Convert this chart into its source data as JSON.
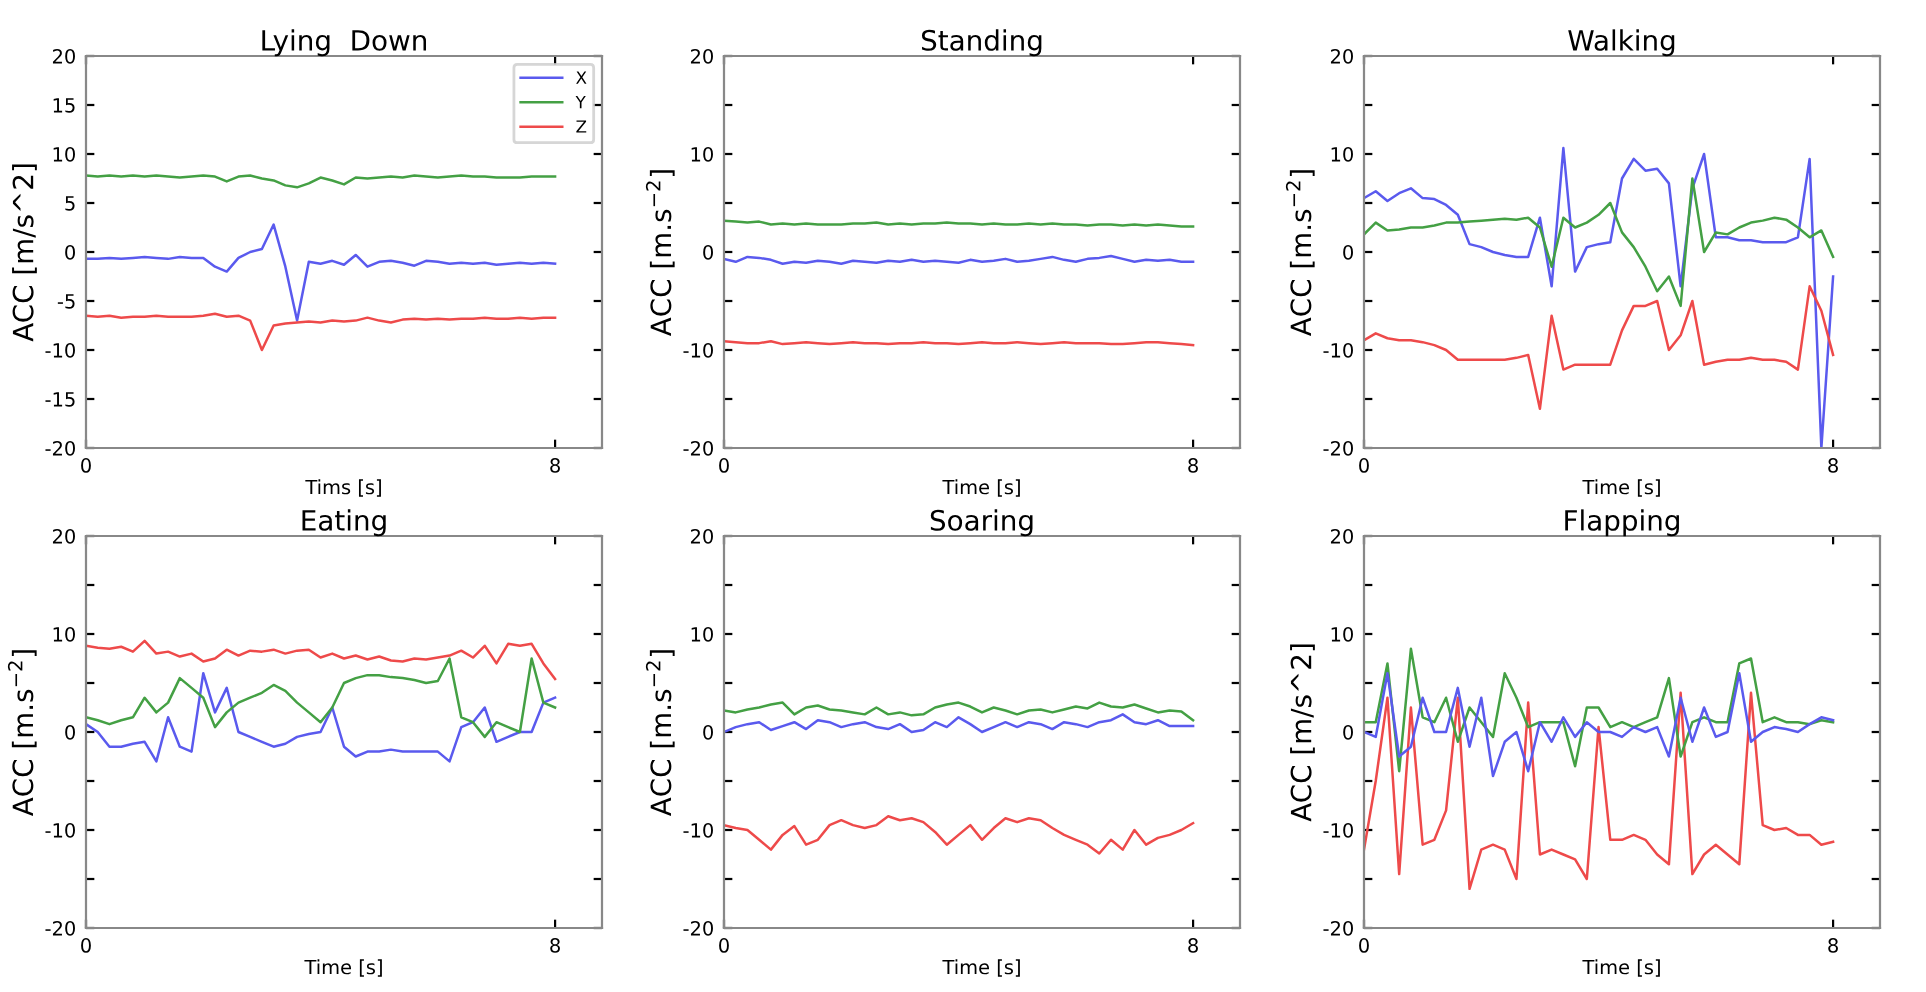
{
  "chart_data": [
    {
      "type": "line",
      "title": "Lying  Down",
      "xlabel": "Tims [s]",
      "ylabel": "ACC [m/s^2]",
      "legend": "top right",
      "x": [
        0,
        0.2,
        0.4,
        0.6,
        0.8,
        1.0,
        1.2,
        1.4,
        1.6,
        1.8,
        2.0,
        2.2,
        2.4,
        2.6,
        2.8,
        3.0,
        3.2,
        3.4,
        3.6,
        3.8,
        4.0,
        4.2,
        4.4,
        4.6,
        4.8,
        5.0,
        5.2,
        5.4,
        5.6,
        5.8,
        6.0,
        6.2,
        6.4,
        6.6,
        6.8,
        7.0,
        7.2,
        7.4,
        7.6,
        7.8,
        8.0
      ],
      "xlim": [
        0,
        8.8
      ],
      "xticks": [
        0,
        8
      ],
      "ylim": [
        -20,
        20
      ],
      "yticks": [
        -20,
        -15,
        -10,
        -5,
        0,
        5,
        10,
        15,
        20
      ],
      "series": [
        {
          "name": "X",
          "color": "#5a5aee",
          "values": [
            -0.7,
            -0.7,
            -0.6,
            -0.7,
            -0.6,
            -0.5,
            -0.6,
            -0.7,
            -0.5,
            -0.6,
            -0.6,
            -1.5,
            -2.0,
            -0.6,
            0.0,
            0.3,
            2.8,
            -1.5,
            -7.0,
            -1.0,
            -1.2,
            -0.9,
            -1.3,
            -0.3,
            -1.5,
            -1.0,
            -0.9,
            -1.1,
            -1.4,
            -0.9,
            -1.0,
            -1.2,
            -1.1,
            -1.2,
            -1.1,
            -1.3,
            -1.2,
            -1.1,
            -1.2,
            -1.1,
            -1.2
          ]
        },
        {
          "name": "Y",
          "color": "#44a044",
          "values": [
            7.8,
            7.7,
            7.8,
            7.7,
            7.8,
            7.7,
            7.8,
            7.7,
            7.6,
            7.7,
            7.8,
            7.7,
            7.2,
            7.7,
            7.8,
            7.5,
            7.3,
            6.8,
            6.6,
            7.0,
            7.6,
            7.3,
            6.9,
            7.6,
            7.5,
            7.6,
            7.7,
            7.6,
            7.8,
            7.7,
            7.6,
            7.7,
            7.8,
            7.7,
            7.7,
            7.6,
            7.6,
            7.6,
            7.7,
            7.7,
            7.7
          ]
        },
        {
          "name": "Z",
          "color": "#ee4a4a",
          "values": [
            -6.5,
            -6.6,
            -6.5,
            -6.7,
            -6.6,
            -6.6,
            -6.5,
            -6.6,
            -6.6,
            -6.6,
            -6.5,
            -6.3,
            -6.6,
            -6.5,
            -7.0,
            -10.0,
            -7.5,
            -7.3,
            -7.2,
            -7.1,
            -7.2,
            -7.0,
            -7.1,
            -7.0,
            -6.7,
            -7.0,
            -7.2,
            -6.9,
            -6.8,
            -6.9,
            -6.8,
            -6.9,
            -6.8,
            -6.8,
            -6.7,
            -6.8,
            -6.8,
            -6.7,
            -6.8,
            -6.7,
            -6.7
          ]
        }
      ]
    },
    {
      "type": "line",
      "title": "Standing",
      "xlabel": "Time [s]",
      "ylabel": "ACC [m.s$^{−2}$]",
      "x": [
        0,
        0.2,
        0.4,
        0.6,
        0.8,
        1.0,
        1.2,
        1.4,
        1.6,
        1.8,
        2.0,
        2.2,
        2.4,
        2.6,
        2.8,
        3.0,
        3.2,
        3.4,
        3.6,
        3.8,
        4.0,
        4.2,
        4.4,
        4.6,
        4.8,
        5.0,
        5.2,
        5.4,
        5.6,
        5.8,
        6.0,
        6.2,
        6.4,
        6.6,
        6.8,
        7.0,
        7.2,
        7.4,
        7.6,
        7.8,
        8.0
      ],
      "xlim": [
        0,
        8.8
      ],
      "xticks": [
        0,
        8
      ],
      "ylim": [
        -20,
        20
      ],
      "yticks": [
        -20,
        {
          "value": -15,
          "label": null
        },
        -10,
        {
          "value": -5,
          "label": null
        },
        0,
        {
          "value": 5,
          "label": null
        },
        10,
        {
          "value": 15,
          "label": null
        },
        20
      ],
      "series": [
        {
          "color": "#5a5aee",
          "values": [
            -0.7,
            -1.0,
            -0.5,
            -0.6,
            -0.8,
            -1.2,
            -1.0,
            -1.1,
            -0.9,
            -1.0,
            -1.2,
            -0.9,
            -1.0,
            -1.1,
            -0.9,
            -1.0,
            -0.8,
            -1.0,
            -0.9,
            -1.0,
            -1.1,
            -0.8,
            -1.0,
            -0.9,
            -0.7,
            -1.0,
            -0.9,
            -0.7,
            -0.5,
            -0.8,
            -1.0,
            -0.7,
            -0.6,
            -0.4,
            -0.7,
            -1.0,
            -0.8,
            -0.9,
            -0.8,
            -1.0,
            -1.0
          ]
        },
        {
          "color": "#44a044",
          "values": [
            3.2,
            3.1,
            3.0,
            3.1,
            2.8,
            2.9,
            2.8,
            2.9,
            2.8,
            2.8,
            2.8,
            2.9,
            2.9,
            3.0,
            2.8,
            2.9,
            2.8,
            2.9,
            2.9,
            3.0,
            2.9,
            2.9,
            2.8,
            2.9,
            2.8,
            2.8,
            2.9,
            2.8,
            2.9,
            2.8,
            2.8,
            2.7,
            2.8,
            2.8,
            2.7,
            2.8,
            2.7,
            2.8,
            2.7,
            2.6,
            2.6
          ]
        },
        {
          "color": "#ee4a4a",
          "values": [
            -9.1,
            -9.2,
            -9.3,
            -9.3,
            -9.1,
            -9.4,
            -9.3,
            -9.2,
            -9.3,
            -9.4,
            -9.3,
            -9.2,
            -9.3,
            -9.3,
            -9.4,
            -9.3,
            -9.3,
            -9.2,
            -9.3,
            -9.3,
            -9.4,
            -9.3,
            -9.2,
            -9.3,
            -9.3,
            -9.2,
            -9.3,
            -9.4,
            -9.3,
            -9.2,
            -9.3,
            -9.3,
            -9.3,
            -9.4,
            -9.4,
            -9.3,
            -9.2,
            -9.2,
            -9.3,
            -9.4,
            -9.5
          ]
        }
      ]
    },
    {
      "type": "line",
      "title": "Walking",
      "xlabel": "Time [s]",
      "ylabel": "ACC [m.s$^{−2}$]",
      "x": [
        0,
        0.2,
        0.4,
        0.6,
        0.8,
        1.0,
        1.2,
        1.4,
        1.6,
        1.8,
        2.0,
        2.2,
        2.4,
        2.6,
        2.8,
        3.0,
        3.2,
        3.4,
        3.6,
        3.8,
        4.0,
        4.2,
        4.4,
        4.6,
        4.8,
        5.0,
        5.2,
        5.4,
        5.6,
        5.8,
        6.0,
        6.2,
        6.4,
        6.6,
        6.8,
        7.0,
        7.2,
        7.4,
        7.6,
        7.8,
        8.0
      ],
      "xlim": [
        0,
        8.8
      ],
      "xticks": [
        0,
        8
      ],
      "ylim": [
        -20,
        20
      ],
      "yticks": [
        -20,
        {
          "value": -15,
          "label": null
        },
        -10,
        {
          "value": -5,
          "label": null
        },
        0,
        {
          "value": 5,
          "label": null
        },
        10,
        {
          "value": 15,
          "label": null
        },
        20
      ],
      "series": [
        {
          "color": "#5a5aee",
          "values": [
            5.5,
            6.2,
            5.2,
            6.0,
            6.5,
            5.5,
            5.4,
            4.8,
            3.8,
            0.8,
            0.5,
            0.0,
            -0.3,
            -0.5,
            -0.5,
            3.5,
            -3.5,
            10.6,
            -2.0,
            0.5,
            0.8,
            1.0,
            7.5,
            9.5,
            8.3,
            8.5,
            7.0,
            -3.5,
            6.5,
            10.0,
            1.5,
            1.5,
            1.2,
            1.2,
            1.0,
            1.0,
            1.0,
            1.5,
            9.5,
            -20.0,
            -2.5
          ]
        },
        {
          "color": "#44a044",
          "values": [
            1.8,
            3.0,
            2.2,
            2.3,
            2.5,
            2.5,
            2.7,
            3.0,
            3.0,
            3.1,
            3.2,
            3.3,
            3.4,
            3.3,
            3.5,
            2.5,
            -1.5,
            3.5,
            2.5,
            3.0,
            3.8,
            5.0,
            2.0,
            0.5,
            -1.5,
            -4.0,
            -2.5,
            -5.5,
            7.5,
            0.0,
            2.0,
            1.8,
            2.5,
            3.0,
            3.2,
            3.5,
            3.3,
            2.5,
            1.5,
            2.2,
            -0.5
          ]
        },
        {
          "color": "#ee4a4a",
          "values": [
            -9.0,
            -8.3,
            -8.8,
            -9.0,
            -9.0,
            -9.2,
            -9.5,
            -10.0,
            -11.0,
            -11.0,
            -11.0,
            -11.0,
            -11.0,
            -10.8,
            -10.5,
            -16.0,
            -6.5,
            -12.0,
            -11.5,
            -11.5,
            -11.5,
            -11.5,
            -8.0,
            -5.5,
            -5.5,
            -5.0,
            -10.0,
            -8.5,
            -5.0,
            -11.5,
            -11.2,
            -11.0,
            -11.0,
            -10.8,
            -11.0,
            -11.0,
            -11.2,
            -12.0,
            -3.5,
            -6.0,
            -10.5
          ]
        }
      ]
    },
    {
      "type": "line",
      "title": "Eating",
      "xlabel": "Time [s]",
      "ylabel": "ACC [m.s$^{−2}$]",
      "x": [
        0,
        0.2,
        0.4,
        0.6,
        0.8,
        1.0,
        1.2,
        1.4,
        1.6,
        1.8,
        2.0,
        2.2,
        2.4,
        2.6,
        2.8,
        3.0,
        3.2,
        3.4,
        3.6,
        3.8,
        4.0,
        4.2,
        4.4,
        4.6,
        4.8,
        5.0,
        5.2,
        5.4,
        5.6,
        5.8,
        6.0,
        6.2,
        6.4,
        6.6,
        6.8,
        7.0,
        7.2,
        7.4,
        7.6,
        7.8,
        8.0
      ],
      "xlim": [
        0,
        8.8
      ],
      "xticks": [
        0,
        8
      ],
      "ylim": [
        -20,
        20
      ],
      "yticks": [
        -20,
        {
          "value": -15,
          "label": null
        },
        -10,
        {
          "value": -5,
          "label": null
        },
        0,
        {
          "value": 5,
          "label": null
        },
        10,
        {
          "value": 15,
          "label": null
        },
        20
      ],
      "series": [
        {
          "color": "#5a5aee",
          "values": [
            0.8,
            0.0,
            -1.5,
            -1.5,
            -1.2,
            -1.0,
            -3.0,
            1.5,
            -1.5,
            -2.0,
            6.0,
            2.0,
            4.5,
            0.0,
            -0.5,
            -1.0,
            -1.5,
            -1.2,
            -0.5,
            -0.2,
            0.0,
            2.5,
            -1.5,
            -2.5,
            -2.0,
            -2.0,
            -1.8,
            -2.0,
            -2.0,
            -2.0,
            -2.0,
            -3.0,
            0.5,
            1.0,
            2.5,
            -1.0,
            -0.5,
            0.0,
            0.0,
            3.0,
            3.5
          ]
        },
        {
          "color": "#44a044",
          "values": [
            1.5,
            1.2,
            0.8,
            1.2,
            1.5,
            3.5,
            2.0,
            3.0,
            5.5,
            4.5,
            3.5,
            0.5,
            2.0,
            3.0,
            3.5,
            4.0,
            4.8,
            4.2,
            3.0,
            2.0,
            1.0,
            2.5,
            5.0,
            5.5,
            5.8,
            5.8,
            5.6,
            5.5,
            5.3,
            5.0,
            5.2,
            7.5,
            1.5,
            1.0,
            -0.5,
            1.0,
            0.5,
            0.0,
            7.5,
            3.0,
            2.5
          ]
        },
        {
          "color": "#ee4a4a",
          "values": [
            8.8,
            8.6,
            8.5,
            8.7,
            8.2,
            9.3,
            8.0,
            8.2,
            7.7,
            8.0,
            7.2,
            7.5,
            8.4,
            7.8,
            8.3,
            8.2,
            8.4,
            8.0,
            8.3,
            8.4,
            7.6,
            8.0,
            7.5,
            7.8,
            7.4,
            7.7,
            7.3,
            7.2,
            7.5,
            7.4,
            7.6,
            7.8,
            8.3,
            7.6,
            8.8,
            7.0,
            9.0,
            8.8,
            9.0,
            7.0,
            5.4
          ]
        }
      ]
    },
    {
      "type": "line",
      "title": "Soaring",
      "xlabel": "Time [s]",
      "ylabel": "ACC [m.s$^{−2}$]",
      "x": [
        0,
        0.2,
        0.4,
        0.6,
        0.8,
        1.0,
        1.2,
        1.4,
        1.6,
        1.8,
        2.0,
        2.2,
        2.4,
        2.6,
        2.8,
        3.0,
        3.2,
        3.4,
        3.6,
        3.8,
        4.0,
        4.2,
        4.4,
        4.6,
        4.8,
        5.0,
        5.2,
        5.4,
        5.6,
        5.8,
        6.0,
        6.2,
        6.4,
        6.6,
        6.8,
        7.0,
        7.2,
        7.4,
        7.6,
        7.8,
        8.0
      ],
      "xlim": [
        0,
        8.8
      ],
      "xticks": [
        0,
        8
      ],
      "ylim": [
        -20,
        20
      ],
      "yticks": [
        -20,
        {
          "value": -15,
          "label": null
        },
        -10,
        {
          "value": -5,
          "label": null
        },
        0,
        {
          "value": 5,
          "label": null
        },
        10,
        {
          "value": 15,
          "label": null
        },
        20
      ],
      "series": [
        {
          "color": "#5a5aee",
          "values": [
            0.0,
            0.5,
            0.8,
            1.0,
            0.2,
            0.6,
            1.0,
            0.3,
            1.2,
            1.0,
            0.5,
            0.8,
            1.0,
            0.5,
            0.3,
            0.8,
            0.0,
            0.2,
            1.0,
            0.5,
            1.5,
            0.8,
            0.0,
            0.5,
            1.0,
            0.5,
            1.0,
            0.8,
            0.3,
            1.0,
            0.8,
            0.5,
            1.0,
            1.2,
            1.8,
            1.0,
            0.8,
            1.2,
            0.6,
            0.6,
            0.6
          ]
        },
        {
          "color": "#44a044",
          "values": [
            2.2,
            2.0,
            2.3,
            2.5,
            2.8,
            3.0,
            1.8,
            2.5,
            2.7,
            2.3,
            2.2,
            2.0,
            1.8,
            2.5,
            1.8,
            2.0,
            1.7,
            1.8,
            2.5,
            2.8,
            3.0,
            2.6,
            2.0,
            2.5,
            2.2,
            1.8,
            2.2,
            2.3,
            2.0,
            2.3,
            2.6,
            2.4,
            3.0,
            2.6,
            2.5,
            2.8,
            2.4,
            2.0,
            2.2,
            2.1,
            1.2
          ]
        },
        {
          "color": "#ee4a4a",
          "values": [
            -9.5,
            -9.8,
            -10.0,
            -11.0,
            -12.0,
            -10.5,
            -9.6,
            -11.5,
            -11.0,
            -9.5,
            -9.0,
            -9.5,
            -9.8,
            -9.5,
            -8.6,
            -9.0,
            -8.8,
            -9.2,
            -10.2,
            -11.5,
            -10.5,
            -9.5,
            -11.0,
            -9.8,
            -8.8,
            -9.2,
            -8.8,
            -9.0,
            -9.8,
            -10.5,
            -11.0,
            -11.5,
            -12.4,
            -11.0,
            -12.0,
            -10.0,
            -11.5,
            -10.8,
            -10.5,
            -10.0,
            -9.3
          ]
        }
      ]
    },
    {
      "type": "line",
      "title": "Flapping",
      "xlabel": "Time [s]",
      "ylabel": "ACC [m/s^2]",
      "x": [
        0,
        0.2,
        0.4,
        0.6,
        0.8,
        1.0,
        1.2,
        1.4,
        1.6,
        1.8,
        2.0,
        2.2,
        2.4,
        2.6,
        2.8,
        3.0,
        3.2,
        3.4,
        3.6,
        3.8,
        4.0,
        4.2,
        4.4,
        4.6,
        4.8,
        5.0,
        5.2,
        5.4,
        5.6,
        5.8,
        6.0,
        6.2,
        6.4,
        6.6,
        6.8,
        7.0,
        7.2,
        7.4,
        7.6,
        7.8,
        8.0
      ],
      "xlim": [
        0,
        8.8
      ],
      "xticks": [
        0,
        8
      ],
      "ylim": [
        -20,
        20
      ],
      "yticks": [
        -20,
        {
          "value": -15,
          "label": null
        },
        -10,
        {
          "value": -5,
          "label": null
        },
        0,
        {
          "value": 5,
          "label": null
        },
        10,
        {
          "value": 15,
          "label": null
        },
        20
      ],
      "series": [
        {
          "color": "#ee4a4a",
          "values": [
            -12.0,
            -5.0,
            3.5,
            -14.5,
            2.5,
            -11.5,
            -11.0,
            -8.0,
            3.5,
            -16.0,
            -12.0,
            -11.5,
            -12.0,
            -15.0,
            3.0,
            -12.5,
            -12.0,
            -12.5,
            -13.0,
            -15.0,
            0.5,
            -11.0,
            -11.0,
            -10.5,
            -11.0,
            -12.5,
            -13.5,
            4.0,
            -14.5,
            -12.5,
            -11.5,
            -12.5,
            -13.5,
            4.0,
            -9.5,
            -10.0,
            -9.8,
            -10.5,
            -10.5,
            -11.5,
            -11.2
          ]
        },
        {
          "color": "#44a044",
          "values": [
            1.0,
            1.0,
            7.0,
            -4.0,
            8.5,
            1.5,
            1.0,
            3.5,
            -1.0,
            2.5,
            1.0,
            -0.5,
            6.0,
            3.5,
            0.5,
            1.0,
            1.0,
            1.0,
            -3.5,
            2.5,
            2.5,
            0.5,
            1.0,
            0.5,
            1.0,
            1.5,
            5.5,
            -2.5,
            1.0,
            1.5,
            1.0,
            1.0,
            7.0,
            7.5,
            1.0,
            1.5,
            1.0,
            1.0,
            0.8,
            1.2,
            1.0
          ]
        },
        {
          "color": "#5a5aee",
          "values": [
            0.0,
            -0.5,
            6.0,
            -2.5,
            -1.5,
            3.5,
            0.0,
            0.0,
            4.5,
            -1.5,
            3.5,
            -4.5,
            -1.0,
            0.0,
            -4.0,
            1.0,
            -1.0,
            1.5,
            -0.5,
            1.0,
            0.0,
            0.0,
            -0.5,
            0.5,
            0.0,
            0.5,
            -2.5,
            3.5,
            -1.0,
            2.5,
            -0.5,
            0.0,
            6.0,
            -1.0,
            0.0,
            0.5,
            0.3,
            0.0,
            0.8,
            1.5,
            1.2
          ]
        }
      ]
    }
  ]
}
